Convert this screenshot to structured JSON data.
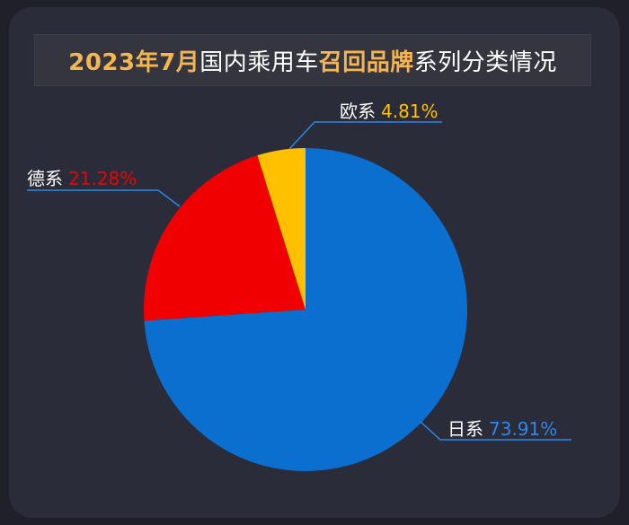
{
  "title": {
    "part1": "2023年7月",
    "part2": "国内乘用车",
    "part3": "召回品牌",
    "part4": "系列分类情况"
  },
  "colors": {
    "background": "#2b2c3a",
    "title_highlight": "#f5b651",
    "leader_line": "#2f86e8"
  },
  "chart_data": {
    "type": "pie",
    "title": "2023年7月国内乘用车召回品牌系列分类情况",
    "slices": [
      {
        "name": "日系",
        "value": 73.91,
        "label": "73.91%",
        "color": "#0a6fcf",
        "label_color": "#2f86e8"
      },
      {
        "name": "德系",
        "value": 21.28,
        "label": "21.28%",
        "color": "#f00000",
        "label_color": "#f00000"
      },
      {
        "name": "欧系",
        "value": 4.81,
        "label": "4.81%",
        "color": "#ffc000",
        "label_color": "#ffc000"
      }
    ]
  }
}
